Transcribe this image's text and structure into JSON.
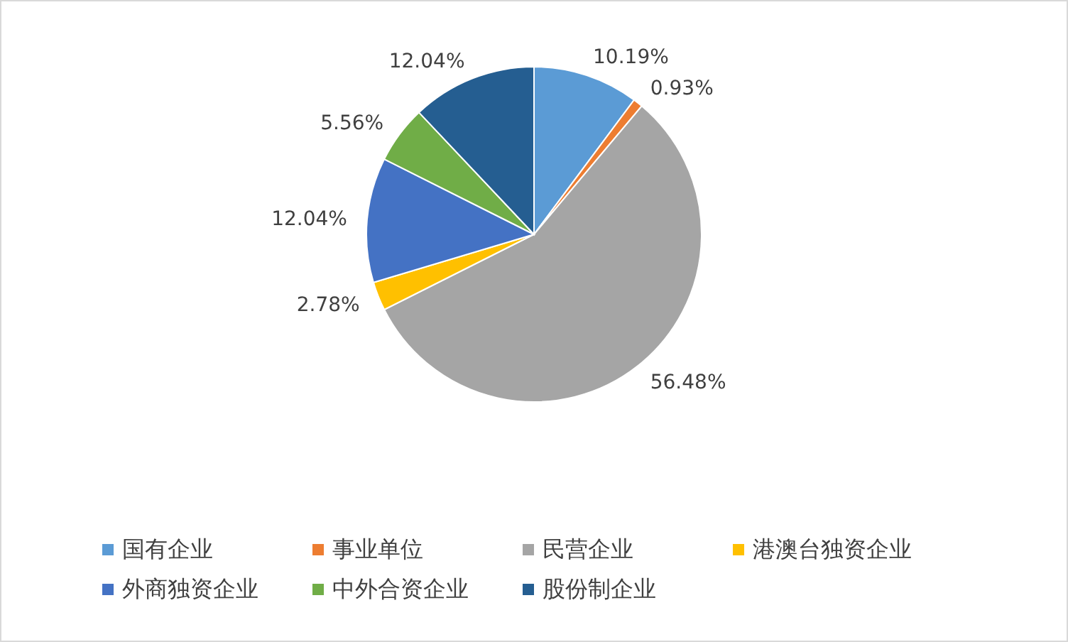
{
  "chart_data": {
    "type": "pie",
    "categories": [
      "国有企业",
      "事业单位",
      "民营企业",
      "港澳台独资企业",
      "外商独资企业",
      "中外合资企业",
      "股份制企业"
    ],
    "values": [
      10.19,
      0.93,
      56.48,
      2.78,
      12.04,
      5.56,
      12.04
    ],
    "colors": [
      "#5b9bd5",
      "#ed7d31",
      "#a5a5a5",
      "#ffc000",
      "#4472c4",
      "#70ad47",
      "#255e91"
    ],
    "value_labels": [
      "10.19%",
      "0.93%",
      "56.48%",
      "2.78%",
      "12.04%",
      "5.56%",
      "12.04%"
    ],
    "legend": "bottom"
  }
}
